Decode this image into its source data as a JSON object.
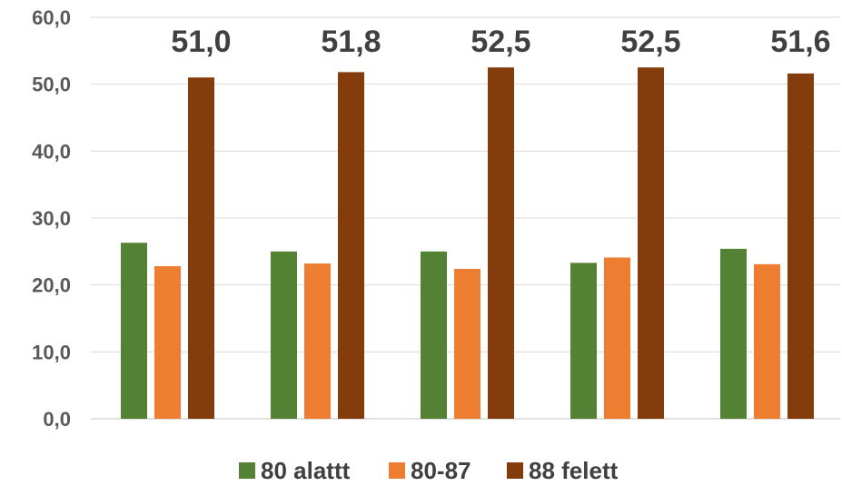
{
  "chart_data": {
    "type": "bar",
    "categories": [
      "",
      "",
      "",
      "",
      ""
    ],
    "series": [
      {
        "name": "80 alattt",
        "color": "#548235",
        "values": [
          26.3,
          25.0,
          25.0,
          23.3,
          25.4
        ]
      },
      {
        "name": "80-87",
        "color": "#ED7D31",
        "values": [
          22.8,
          23.2,
          22.4,
          24.1,
          23.1
        ]
      },
      {
        "name": "88 felett",
        "color": "#843C0C",
        "values": [
          51.0,
          51.8,
          52.5,
          52.5,
          51.6
        ]
      }
    ],
    "data_labels": [
      "51,0",
      "51,8",
      "52,5",
      "52,5",
      "51,6"
    ],
    "y_ticks": [
      "0,0",
      "10,0",
      "20,0",
      "30,0",
      "40,0",
      "50,0",
      "60,0"
    ],
    "ylim": [
      0,
      60
    ],
    "title": "",
    "xlabel": "",
    "ylabel": "",
    "grid": true,
    "legend_position": "bottom"
  }
}
